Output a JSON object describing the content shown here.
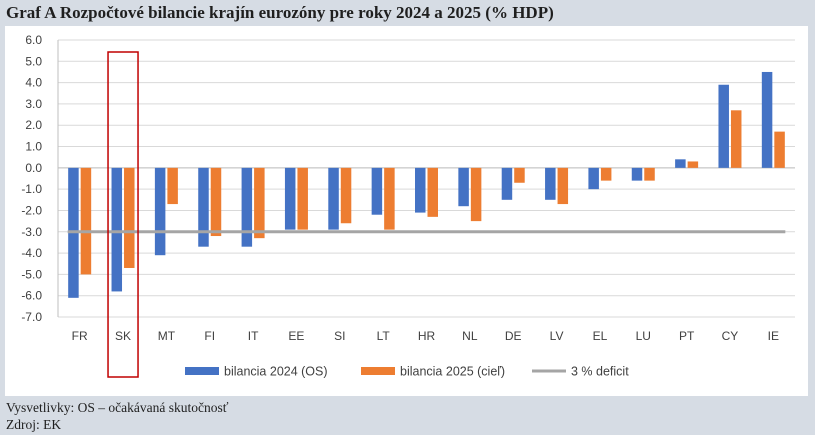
{
  "title": "Graf A Rozpočtové bilancie krajín eurozóny pre roky 2024 a 2025 (% HDP)",
  "notes": {
    "vysvetlivky": "Vysvetlivky: OS – očakávaná skutočnosť",
    "zdroj": "Zdroj: EK"
  },
  "colors": {
    "series_2024": "#4472c4",
    "series_2025": "#ed7d31",
    "deficit_line": "#a5a5a5",
    "highlight_box": "#c00000"
  },
  "chart_data": {
    "type": "bar",
    "title": "Graf A Rozpočtové bilancie krajín eurozóny pre roky 2024 a 2025 (% HDP)",
    "xlabel": "",
    "ylabel": "",
    "ylim": [
      -7.0,
      6.0
    ],
    "ytick_step": 1.0,
    "ytick_labels": [
      "6.0",
      "5.0",
      "4.0",
      "3.0",
      "2.0",
      "1.0",
      "0.0",
      "-1.0",
      "-2.0",
      "-3.0",
      "-4.0",
      "-5.0",
      "-6.0",
      "-7.0"
    ],
    "grid": true,
    "legend_position": "bottom",
    "highlighted_category": "SK",
    "categories": [
      "FR",
      "SK",
      "MT",
      "FI",
      "IT",
      "EE",
      "SI",
      "LT",
      "HR",
      "NL",
      "DE",
      "LV",
      "EL",
      "LU",
      "PT",
      "CY",
      "IE"
    ],
    "series": [
      {
        "name": "bilancia 2024 (OS)",
        "type": "bar",
        "values": [
          -6.1,
          -5.8,
          -4.1,
          -3.7,
          -3.7,
          -2.9,
          -2.9,
          -2.2,
          -2.1,
          -1.8,
          -1.5,
          -1.5,
          -1.0,
          -0.6,
          0.4,
          3.9,
          4.5
        ]
      },
      {
        "name": "bilancia 2025 (cieľ)",
        "type": "bar",
        "values": [
          -5.0,
          -4.7,
          -1.7,
          -3.2,
          -3.3,
          -2.9,
          -2.6,
          -2.9,
          -2.3,
          -2.5,
          -0.7,
          -1.7,
          -0.6,
          -0.6,
          0.3,
          2.7,
          1.7
        ]
      },
      {
        "name": "3 % deficit",
        "type": "line",
        "value": -3.0
      }
    ]
  }
}
